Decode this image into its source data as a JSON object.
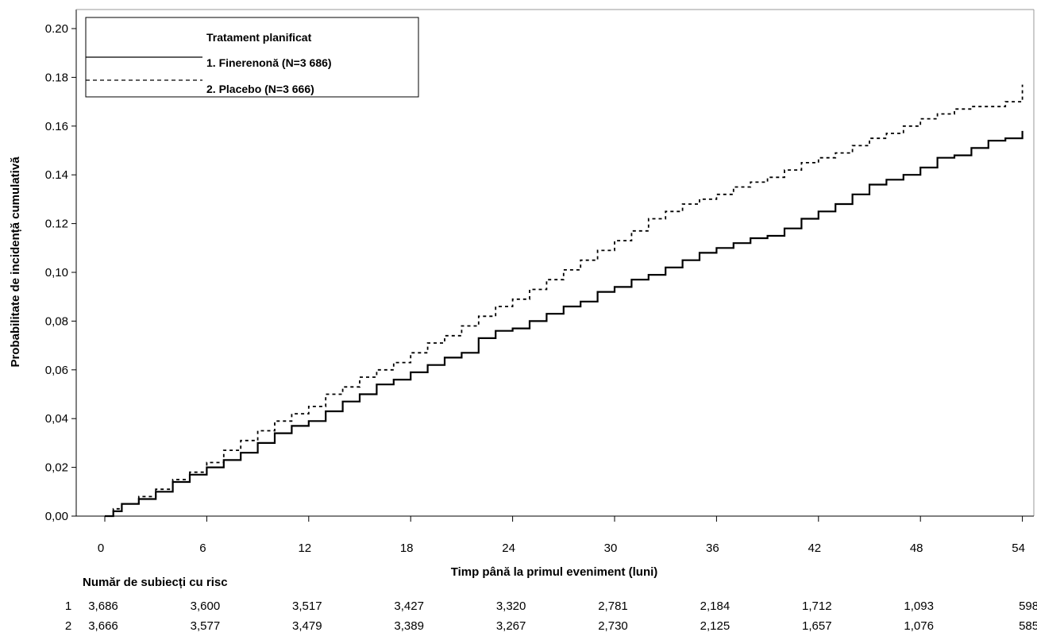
{
  "chart_data": {
    "type": "line",
    "xlabel": "Timp până la primul eveniment (luni)",
    "ylabel": "Probabilitate de incidență cumulativă",
    "xlim": [
      0,
      55
    ],
    "ylim": [
      0,
      0.2
    ],
    "x_ticks": [
      0,
      6,
      12,
      18,
      24,
      30,
      36,
      42,
      48,
      54
    ],
    "x_tick_labels": [
      "0",
      "6",
      "12",
      "18",
      "24",
      "30",
      "36",
      "42",
      "48",
      "54"
    ],
    "y_ticks": [
      0,
      0.02,
      0.04,
      0.06,
      0.08,
      0.1,
      0.12,
      0.14,
      0.16,
      0.18,
      0.2
    ],
    "y_tick_labels": [
      "0,00",
      "0,02",
      "0,04",
      "0,06",
      "0,08",
      "0,10",
      "0.12",
      "0.14",
      "0.16",
      "0.18",
      "0.20"
    ],
    "grid": false,
    "legend": {
      "title": "Tratament planificat",
      "placement": "top-left"
    },
    "series": [
      {
        "name": "1. Finerenonă (N=3 686)",
        "style": "solid",
        "color": "#000000",
        "x": [
          0,
          0.5,
          1,
          2,
          3,
          4,
          5,
          6,
          7,
          8,
          9,
          10,
          11,
          12,
          13,
          14,
          15,
          16,
          17,
          18,
          19,
          20,
          21,
          22,
          23,
          24,
          25,
          26,
          27,
          28,
          29,
          30,
          31,
          32,
          33,
          34,
          35,
          36,
          37,
          38,
          39,
          40,
          41,
          42,
          43,
          44,
          45,
          46,
          47,
          48,
          49,
          50,
          51,
          52,
          53,
          54
        ],
        "y": [
          0,
          0.002,
          0.005,
          0.007,
          0.01,
          0.014,
          0.017,
          0.02,
          0.023,
          0.026,
          0.03,
          0.034,
          0.037,
          0.039,
          0.043,
          0.047,
          0.05,
          0.054,
          0.056,
          0.059,
          0.062,
          0.065,
          0.067,
          0.073,
          0.076,
          0.077,
          0.08,
          0.083,
          0.086,
          0.088,
          0.092,
          0.094,
          0.097,
          0.099,
          0.102,
          0.105,
          0.108,
          0.11,
          0.112,
          0.114,
          0.115,
          0.118,
          0.122,
          0.125,
          0.128,
          0.132,
          0.136,
          0.138,
          0.14,
          0.143,
          0.147,
          0.148,
          0.151,
          0.154,
          0.155,
          0.158
        ]
      },
      {
        "name": "2. Placebo (N=3 666)",
        "style": "dashed",
        "color": "#000000",
        "x": [
          0,
          0.5,
          1,
          2,
          3,
          4,
          5,
          6,
          7,
          8,
          9,
          10,
          11,
          12,
          13,
          14,
          15,
          16,
          17,
          18,
          19,
          20,
          21,
          22,
          23,
          24,
          25,
          26,
          27,
          28,
          29,
          30,
          31,
          32,
          33,
          34,
          35,
          36,
          37,
          38,
          39,
          40,
          41,
          42,
          43,
          44,
          45,
          46,
          47,
          48,
          49,
          50,
          51,
          52,
          53,
          54
        ],
        "y": [
          0,
          0.003,
          0.005,
          0.008,
          0.011,
          0.015,
          0.018,
          0.022,
          0.027,
          0.031,
          0.035,
          0.039,
          0.042,
          0.045,
          0.05,
          0.053,
          0.057,
          0.06,
          0.063,
          0.067,
          0.071,
          0.074,
          0.078,
          0.082,
          0.086,
          0.089,
          0.093,
          0.097,
          0.101,
          0.105,
          0.109,
          0.113,
          0.117,
          0.122,
          0.125,
          0.128,
          0.13,
          0.132,
          0.135,
          0.137,
          0.139,
          0.142,
          0.145,
          0.147,
          0.149,
          0.152,
          0.155,
          0.157,
          0.16,
          0.163,
          0.165,
          0.167,
          0.168,
          0.168,
          0.17,
          0.177
        ]
      }
    ],
    "risk_table": {
      "title": "Număr de subiecți cu risc",
      "time_points": [
        0,
        6,
        12,
        18,
        24,
        30,
        36,
        42,
        48,
        54
      ],
      "rows": [
        {
          "label": "1",
          "values": [
            "3,686",
            "3,600",
            "3,517",
            "3,427",
            "3,320",
            "2,781",
            "2,184",
            "1,712",
            "1,093",
            "598"
          ]
        },
        {
          "label": "2",
          "values": [
            "3,666",
            "3,577",
            "3,479",
            "3,389",
            "3,267",
            "2,730",
            "2,125",
            "1,657",
            "1,076",
            "585"
          ]
        }
      ]
    }
  }
}
